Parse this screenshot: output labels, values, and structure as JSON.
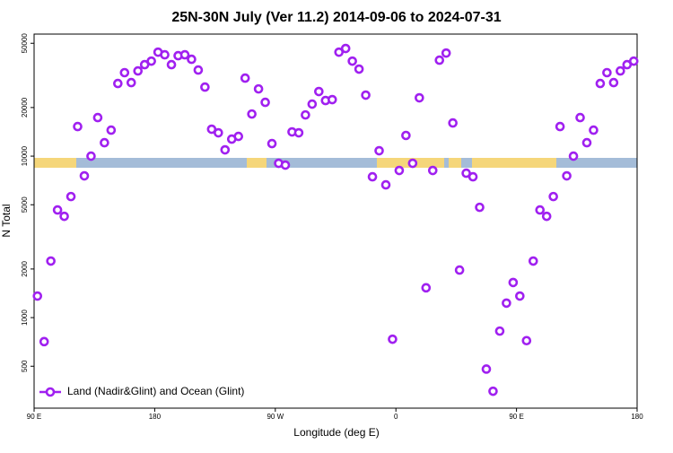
{
  "chart_data": {
    "type": "scatter",
    "title": "25N-30N July (Ver 11.2)   2014-09-06 to 2024-07-31",
    "x_label": "Longitude (deg E)",
    "y_label": "N Total",
    "log_y": true,
    "legend": "lower left",
    "xlim": [
      90,
      540
    ],
    "xticks": [
      {
        "value": 90,
        "label": "90 E"
      },
      {
        "value": 180,
        "label": "180"
      },
      {
        "value": 270,
        "label": "90 W"
      },
      {
        "value": 360,
        "label": "0"
      },
      {
        "value": 450,
        "label": "90 E"
      },
      {
        "value": 540,
        "label": "180"
      }
    ],
    "ylim": [
      275,
      57000
    ],
    "yticks": [
      500,
      1000,
      2000,
      5000,
      10000,
      20000,
      50000
    ],
    "series": [
      {
        "name": "Land (Nadir&Glint) and Ocean (Glint)",
        "color": "#a020f0",
        "x": [
          92.5,
          97.5,
          102.5,
          107.5,
          112.5,
          117.5,
          122.5,
          127.5,
          132.5,
          137.5,
          142.5,
          147.5,
          152.5,
          157.5,
          162.5,
          167.5,
          172.5,
          177.5,
          182.5,
          187.5,
          192.5,
          197.5,
          202.5,
          207.5,
          212.5,
          217.5,
          222.5,
          227.5,
          232.5,
          237.5,
          242.5,
          247.5,
          252.5,
          257.5,
          262.5,
          267.5,
          272.5,
          277.5,
          282.5,
          287.5,
          292.5,
          297.5,
          302.5,
          307.5,
          312.5,
          317.5,
          322.5,
          327.5,
          332.5,
          337.5,
          342.5,
          347.5,
          352.5,
          357.5,
          362.5,
          367.5,
          372.5,
          377.5,
          382.5,
          387.5,
          392.5,
          397.5,
          402.5,
          407.5,
          412.5,
          417.5,
          422.5,
          427.5,
          432.5,
          437.5,
          442.5,
          447.5,
          452.5,
          457.5,
          462.5,
          467.5,
          472.5,
          477.5,
          482.5,
          487.5,
          492.5,
          497.5,
          502.5,
          507.5,
          512.5,
          517.5,
          522.5,
          527.5,
          532.5,
          537.5
        ],
        "values": [
          1360,
          710,
          2240,
          4640,
          4240,
          5620,
          15250,
          7550,
          10000,
          17330,
          12110,
          14490,
          28170,
          32890,
          28530,
          33700,
          36850,
          38760,
          44040,
          42420,
          36850,
          41880,
          42420,
          39790,
          34130,
          26770,
          14680,
          13950,
          10940,
          12750,
          13250,
          30420,
          18230,
          26080,
          21540,
          11960,
          9030,
          8800,
          14130,
          13950,
          18000,
          21000,
          25120,
          22100,
          22390,
          44040,
          46420,
          38760,
          34600,
          23870,
          7450,
          10800,
          6640,
          735,
          8150,
          13430,
          9030,
          22970,
          1530,
          8150,
          39290,
          43480,
          16050,
          1970,
          7840,
          7450,
          4820,
          480,
          350,
          825,
          1230,
          1650,
          1360,
          720,
          2240,
          4640,
          4240,
          5620,
          15250,
          7550,
          10000,
          17330,
          12110,
          14490,
          28170,
          32890,
          28530,
          33700,
          36850,
          38760
        ]
      }
    ]
  }
}
